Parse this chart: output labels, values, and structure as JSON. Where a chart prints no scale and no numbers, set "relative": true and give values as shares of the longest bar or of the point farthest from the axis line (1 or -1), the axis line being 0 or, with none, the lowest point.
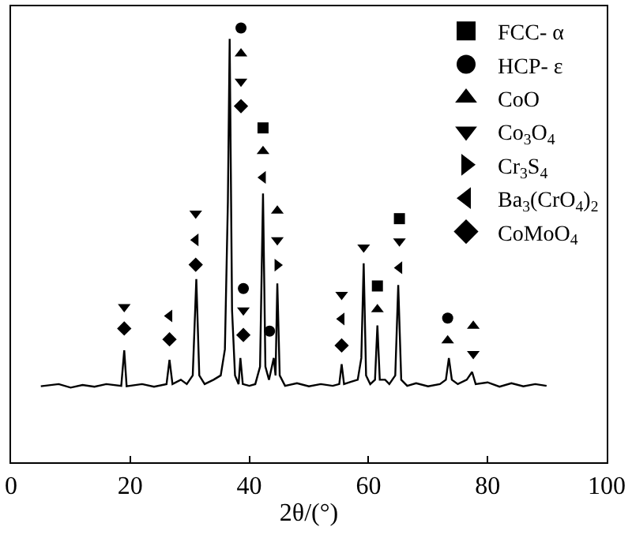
{
  "chart_data": {
    "type": "line",
    "xlabel": "2θ/(°)",
    "relative": true,
    "xlim": [
      0,
      100
    ],
    "xticks": [
      0,
      20,
      40,
      60,
      80,
      100
    ],
    "tick_labels": "x",
    "legend": "top right",
    "series": [
      {
        "color": "#000000",
        "marker": "none",
        "x": [
          5,
          8,
          10,
          12,
          14,
          16,
          18.5,
          19.0,
          19.4,
          22,
          24,
          26.1,
          26.6,
          27.1,
          28.5,
          29.5,
          30.5,
          31.1,
          31.6,
          32.5,
          34,
          35.2,
          35.9,
          36.4,
          36.7,
          37.1,
          37.6,
          38.2,
          38.5,
          38.9,
          40,
          41,
          41.8,
          42.3,
          42.7,
          43.3,
          44.1,
          44.4,
          44.7,
          45.1,
          46,
          48,
          50,
          52,
          54,
          55.1,
          55.5,
          55.9,
          57,
          58.2,
          58.8,
          59.2,
          59.6,
          60.3,
          61.1,
          61.5,
          61.9,
          62.8,
          63.5,
          64.5,
          65.0,
          65.5,
          66.5,
          68,
          70,
          72,
          73.0,
          73.5,
          74,
          75,
          76.5,
          77.4,
          78,
          80,
          82,
          84,
          86,
          88,
          89.9
        ],
        "values": [
          0.175,
          0.18,
          0.172,
          0.178,
          0.174,
          0.18,
          0.176,
          0.258,
          0.175,
          0.18,
          0.174,
          0.18,
          0.236,
          0.18,
          0.19,
          0.18,
          0.2,
          0.422,
          0.2,
          0.18,
          0.19,
          0.2,
          0.26,
          0.6,
          0.975,
          0.35,
          0.2,
          0.18,
          0.24,
          0.18,
          0.176,
          0.18,
          0.22,
          0.619,
          0.22,
          0.19,
          0.24,
          0.2,
          0.412,
          0.2,
          0.176,
          0.182,
          0.175,
          0.18,
          0.176,
          0.18,
          0.226,
          0.18,
          0.185,
          0.19,
          0.24,
          0.458,
          0.2,
          0.18,
          0.19,
          0.315,
          0.19,
          0.19,
          0.18,
          0.2,
          0.408,
          0.19,
          0.176,
          0.182,
          0.175,
          0.18,
          0.19,
          0.24,
          0.19,
          0.18,
          0.19,
          0.208,
          0.18,
          0.184,
          0.174,
          0.182,
          0.175,
          0.18,
          0.176
        ]
      },
      {
        "type": "scatter",
        "name": "FCC- α",
        "color": "#000000",
        "marker": "square",
        "x": [
          42.3,
          61.5,
          65.2
        ],
        "values": [
          0.77,
          0.406,
          0.561
        ]
      },
      {
        "type": "scatter",
        "name": "HCP- ε",
        "color": "#000000",
        "marker": "circle",
        "x": [
          38.6,
          39.0,
          43.4,
          73.3
        ],
        "values": [
          1.0,
          0.4,
          0.302,
          0.332
        ]
      },
      {
        "type": "scatter",
        "name": "CoO",
        "color": "#000000",
        "marker": "triangle-up",
        "x": [
          38.6,
          42.3,
          44.7,
          61.5,
          73.3,
          77.6
        ],
        "values": [
          0.941,
          0.716,
          0.579,
          0.352,
          0.28,
          0.314
        ]
      },
      {
        "type": "scatter",
        "name": "Co$_{3}$O$_{4}$",
        "color": "#000000",
        "marker": "triangle-down",
        "x": [
          19.0,
          31.0,
          38.6,
          39.0,
          44.7,
          55.5,
          59.2,
          65.2,
          77.6
        ],
        "values": [
          0.358,
          0.573,
          0.877,
          0.35,
          0.512,
          0.386,
          0.495,
          0.509,
          0.25
        ]
      },
      {
        "type": "scatter",
        "name": "Cr$_{3}$S$_{4}$",
        "color": "#000000",
        "marker": "triangle-right",
        "x": [
          44.7
        ],
        "values": [
          0.454
        ]
      },
      {
        "type": "scatter",
        "name": "Ba$_{3}$(CrO$_{4}$)$_{2}$",
        "color": "#000000",
        "marker": "triangle-left",
        "x": [
          26.6,
          31.0,
          42.3,
          55.5,
          65.2
        ],
        "values": [
          0.337,
          0.512,
          0.656,
          0.33,
          0.448
        ]
      },
      {
        "type": "scatter",
        "name": "CoMoO$_{4}$",
        "color": "#000000",
        "marker": "diamond",
        "x": [
          19.0,
          26.6,
          31.0,
          38.6,
          39.0,
          55.5
        ],
        "values": [
          0.308,
          0.283,
          0.455,
          0.82,
          0.293,
          0.269
        ]
      }
    ]
  }
}
